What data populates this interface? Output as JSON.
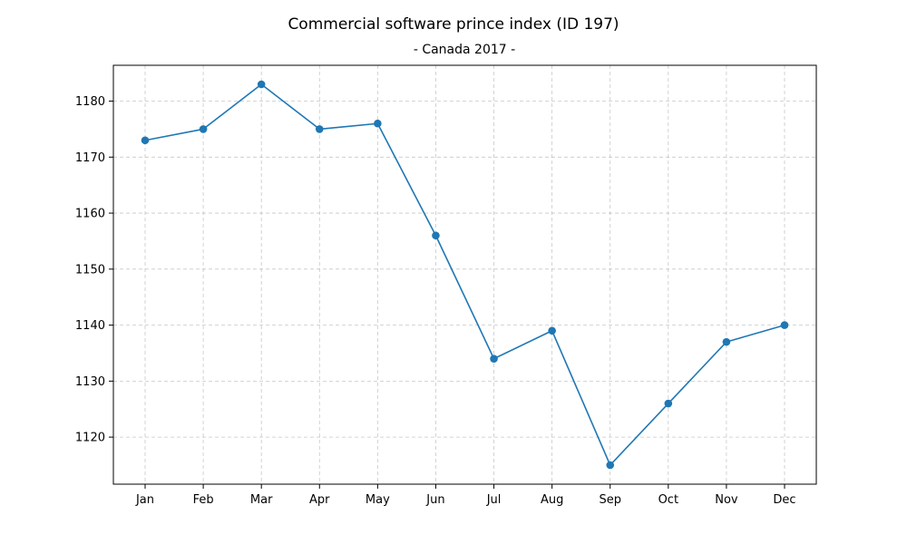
{
  "chart_data": {
    "type": "line",
    "title": "Commercial software prince index (ID 197)",
    "subtitle": "- Canada 2017 -",
    "xlabel": "",
    "ylabel": "",
    "categories": [
      "Jan",
      "Feb",
      "Mar",
      "Apr",
      "May",
      "Jun",
      "Jul",
      "Aug",
      "Sep",
      "Oct",
      "Nov",
      "Dec"
    ],
    "series": [
      {
        "values": [
          1173,
          1175,
          1183,
          1175,
          1176,
          1156,
          1134,
          1139,
          1115,
          1126,
          1137,
          1140
        ],
        "color": "#1f77b4",
        "marker": "circle"
      }
    ],
    "ylim": [
      1111.6,
      1186.4
    ],
    "yticks": [
      1120,
      1130,
      1140,
      1150,
      1160,
      1170,
      1180
    ],
    "grid": true,
    "legend": "none"
  }
}
